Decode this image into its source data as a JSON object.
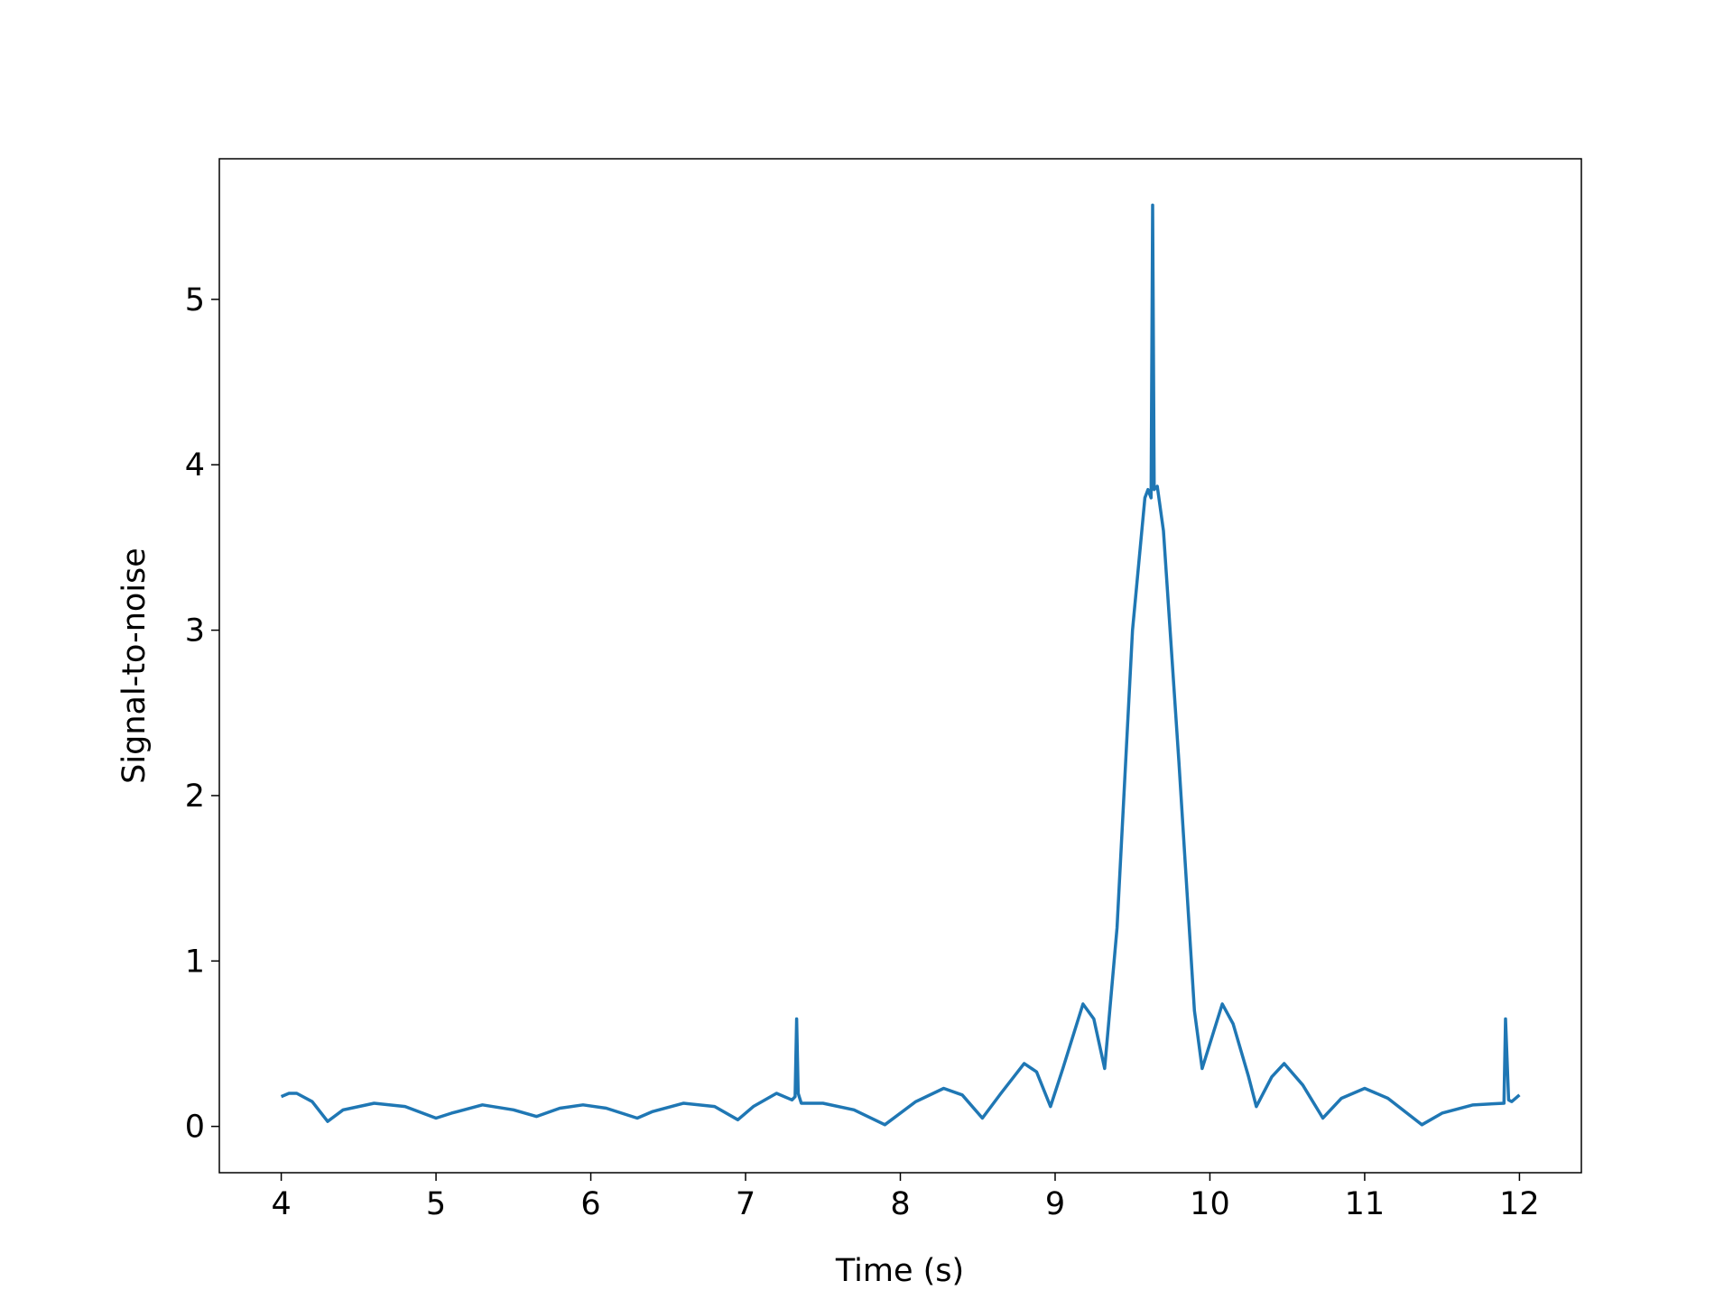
{
  "chart_data": {
    "type": "line",
    "xlabel": "Time (s)",
    "ylabel": "Signal-to-noise",
    "x": [
      4.0,
      4.05,
      4.1,
      4.2,
      4.3,
      4.4,
      4.6,
      4.8,
      5.0,
      5.1,
      5.3,
      5.5,
      5.65,
      5.8,
      5.95,
      6.1,
      6.3,
      6.4,
      6.6,
      6.8,
      6.95,
      7.05,
      7.2,
      7.3,
      7.32,
      7.33,
      7.34,
      7.36,
      7.5,
      7.7,
      7.9,
      8.1,
      8.28,
      8.4,
      8.53,
      8.65,
      8.8,
      8.88,
      8.97,
      9.05,
      9.18,
      9.25,
      9.32,
      9.4,
      9.5,
      9.58,
      9.6,
      9.62,
      9.63,
      9.64,
      9.66,
      9.7,
      9.8,
      9.9,
      9.95,
      10.0,
      10.08,
      10.15,
      10.25,
      10.3,
      10.4,
      10.48,
      10.6,
      10.73,
      10.85,
      11.0,
      11.15,
      11.37,
      11.5,
      11.7,
      11.9,
      11.91,
      11.93,
      11.95,
      12.0
    ],
    "series": [
      {
        "color": "#1f77b4",
        "values": [
          0.18,
          0.2,
          0.2,
          0.15,
          0.03,
          0.1,
          0.14,
          0.12,
          0.05,
          0.08,
          0.13,
          0.1,
          0.06,
          0.11,
          0.13,
          0.11,
          0.05,
          0.09,
          0.14,
          0.12,
          0.04,
          0.12,
          0.2,
          0.16,
          0.18,
          0.65,
          0.2,
          0.14,
          0.14,
          0.1,
          0.01,
          0.15,
          0.23,
          0.19,
          0.05,
          0.2,
          0.38,
          0.33,
          0.12,
          0.35,
          0.74,
          0.65,
          0.35,
          1.2,
          3.0,
          3.8,
          3.85,
          3.8,
          5.57,
          3.85,
          3.87,
          3.6,
          2.2,
          0.7,
          0.35,
          0.5,
          0.74,
          0.62,
          0.3,
          0.12,
          0.3,
          0.38,
          0.25,
          0.05,
          0.17,
          0.23,
          0.17,
          0.01,
          0.08,
          0.13,
          0.14,
          0.65,
          0.16,
          0.15,
          0.19
        ]
      }
    ],
    "xlim": [
      3.6,
      12.4
    ],
    "ylim": [
      -0.28,
      5.85
    ],
    "xticks": [
      4,
      5,
      6,
      7,
      8,
      9,
      10,
      11,
      12
    ],
    "yticks": [
      0,
      1,
      2,
      3,
      4,
      5
    ]
  }
}
